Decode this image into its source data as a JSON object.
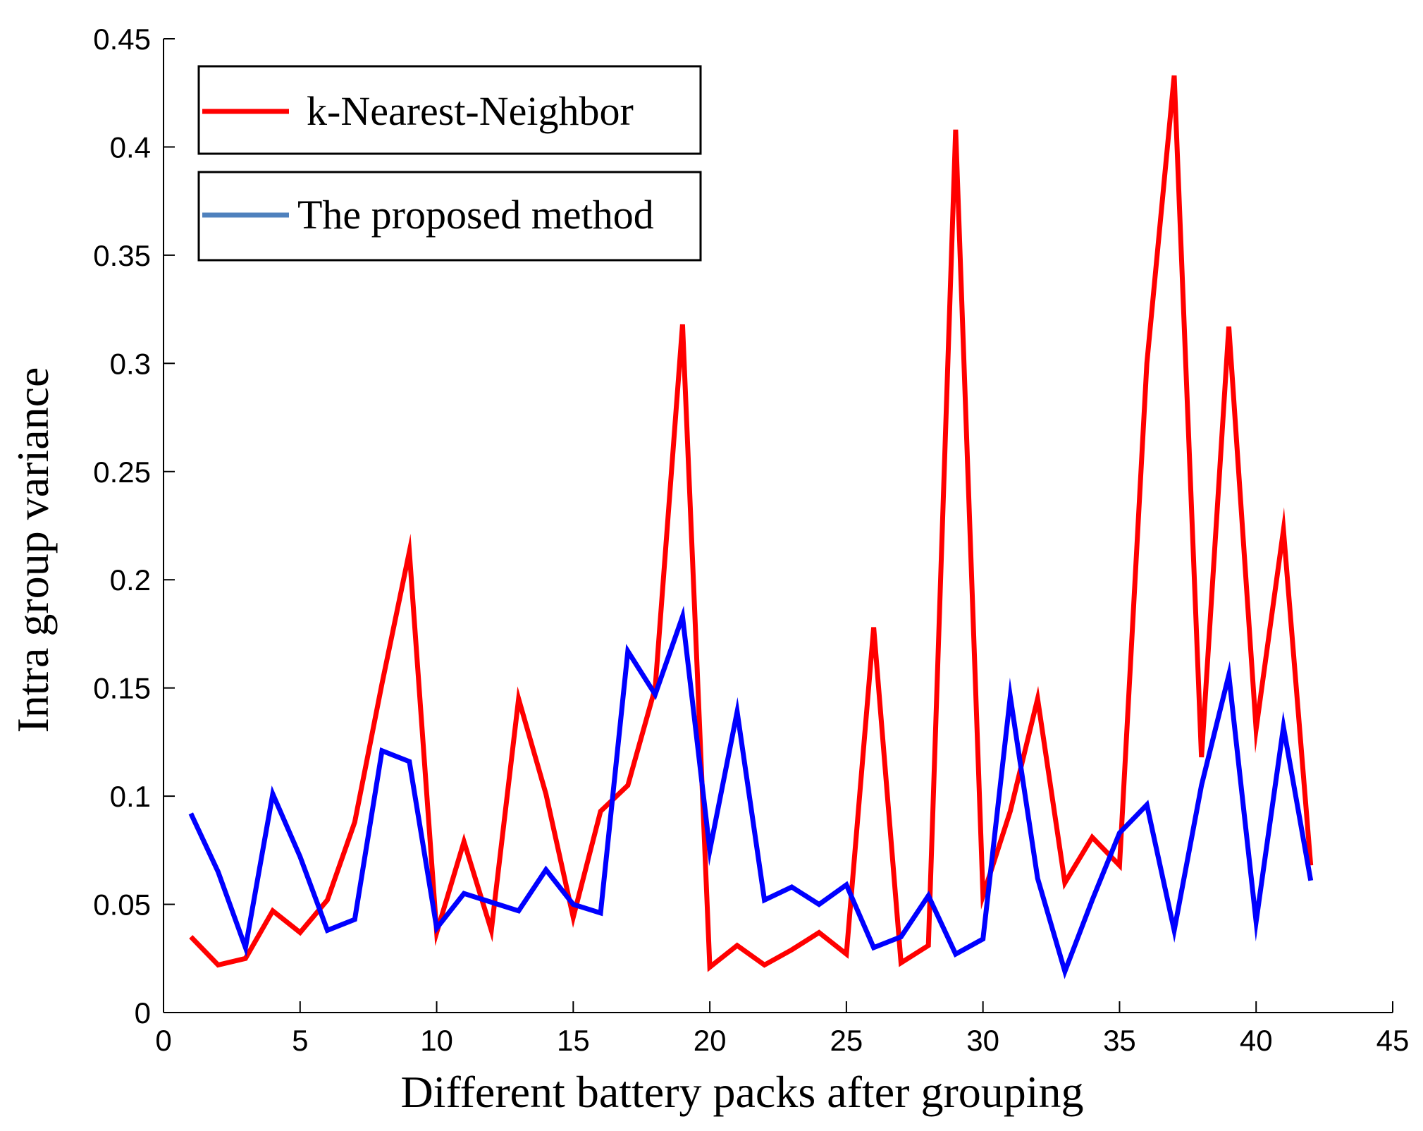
{
  "chart_data": {
    "type": "line",
    "title": "",
    "xlabel": "Different battery packs after grouping",
    "ylabel": "Intra group variance",
    "xlim": [
      0,
      45
    ],
    "ylim": [
      0,
      0.45
    ],
    "xticks": [
      0,
      5,
      10,
      15,
      20,
      25,
      30,
      35,
      40,
      45
    ],
    "yticks": [
      0,
      0.05,
      0.1,
      0.15,
      0.2,
      0.25,
      0.3,
      0.35,
      0.4,
      0.45
    ],
    "xtick_labels": [
      "0",
      "5",
      "10",
      "15",
      "20",
      "25",
      "30",
      "35",
      "40",
      "45"
    ],
    "ytick_labels": [
      "0",
      "0.05",
      "0.1",
      "0.15",
      "0.2",
      "0.25",
      "0.3",
      "0.35",
      "0.4",
      "0.45"
    ],
    "grid": false,
    "legend_position": "top-left",
    "x": [
      1,
      2,
      3,
      4,
      5,
      6,
      7,
      8,
      9,
      10,
      11,
      12,
      13,
      14,
      15,
      16,
      17,
      18,
      19,
      20,
      21,
      22,
      23,
      24,
      25,
      26,
      27,
      28,
      29,
      30,
      31,
      32,
      33,
      34,
      35,
      36,
      37,
      38,
      39,
      40,
      41,
      42
    ],
    "series": [
      {
        "name": "k-Nearest-Neighbor",
        "color": "#ff0000",
        "legend_swatch_color": "#ff0000",
        "values": [
          0.035,
          0.022,
          0.025,
          0.047,
          0.037,
          0.052,
          0.088,
          0.152,
          0.213,
          0.037,
          0.079,
          0.038,
          0.145,
          0.101,
          0.044,
          0.093,
          0.105,
          0.15,
          0.318,
          0.021,
          0.031,
          0.022,
          0.029,
          0.037,
          0.027,
          0.178,
          0.023,
          0.031,
          0.408,
          0.054,
          0.093,
          0.145,
          0.06,
          0.081,
          0.068,
          0.3,
          0.433,
          0.118,
          0.317,
          0.131,
          0.223,
          0.068
        ]
      },
      {
        "name": "The proposed method",
        "color": "#0000ff",
        "legend_swatch_color": "#4f81bd",
        "values": [
          0.092,
          0.065,
          0.03,
          0.101,
          0.072,
          0.038,
          0.043,
          0.121,
          0.116,
          0.039,
          0.055,
          0.051,
          0.047,
          0.066,
          0.05,
          0.046,
          0.167,
          0.147,
          0.183,
          0.075,
          0.139,
          0.052,
          0.058,
          0.05,
          0.059,
          0.03,
          0.035,
          0.054,
          0.027,
          0.034,
          0.146,
          0.062,
          0.019,
          0.052,
          0.083,
          0.096,
          0.038,
          0.105,
          0.156,
          0.042,
          0.132,
          0.061
        ]
      }
    ]
  }
}
